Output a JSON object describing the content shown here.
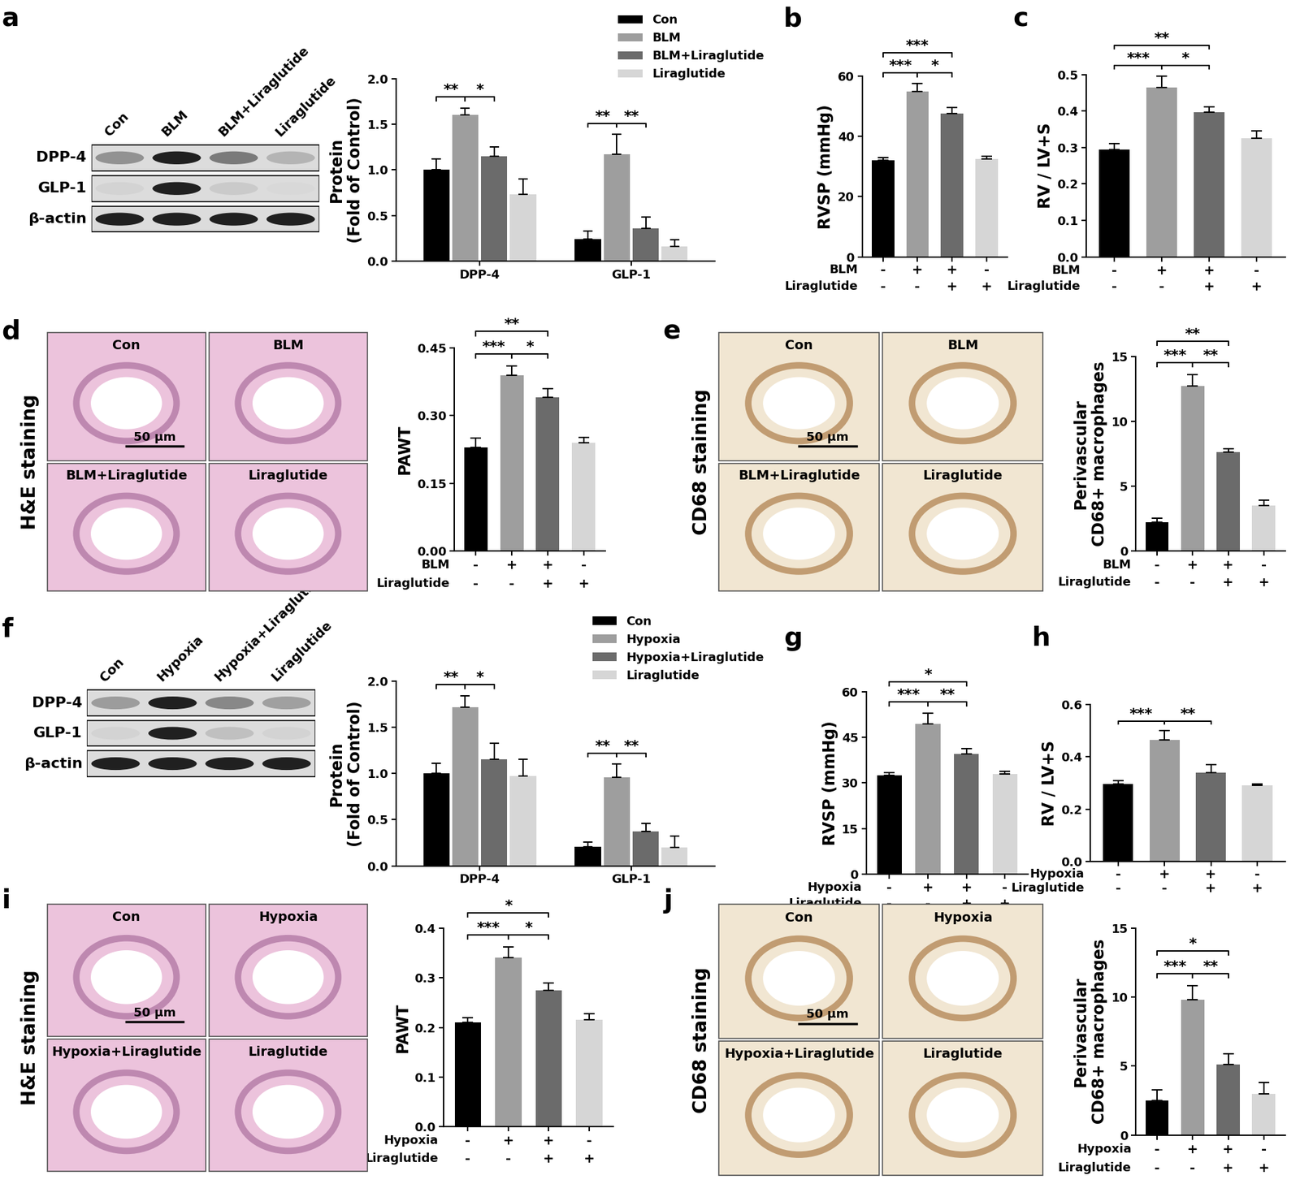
{
  "chart_data": [
    {
      "panel": "a",
      "type": "bar",
      "categories": [
        "DPP-4",
        "GLP-1"
      ],
      "series": [
        {
          "name": "Con",
          "color": "#000000",
          "values": [
            1.0,
            0.24
          ],
          "errors": [
            0.12,
            0.09
          ]
        },
        {
          "name": "BLM",
          "color": "#9e9e9e",
          "values": [
            1.6,
            1.17
          ],
          "errors": [
            0.08,
            0.22
          ]
        },
        {
          "name": "BLM+Liraglutide",
          "color": "#6b6b6b",
          "values": [
            1.15,
            0.36
          ],
          "errors": [
            0.1,
            0.12
          ]
        },
        {
          "name": "Liraglutide",
          "color": "#d6d6d6",
          "values": [
            0.73,
            0.16
          ],
          "errors": [
            0.17,
            0.07
          ]
        }
      ],
      "y_label": "Protein\n(Fold of Control)",
      "ylim": [
        0,
        2.0
      ],
      "yticks": [
        0.0,
        0.5,
        1.0,
        1.5,
        2.0
      ],
      "legend": "upper right",
      "significance": [
        {
          "category": 0,
          "from": 0,
          "to": 1,
          "text": "**"
        },
        {
          "category": 0,
          "from": 1,
          "to": 2,
          "text": "*"
        },
        {
          "category": 1,
          "from": 0,
          "to": 1,
          "text": "**"
        },
        {
          "category": 1,
          "from": 1,
          "to": 2,
          "text": "**"
        }
      ]
    },
    {
      "panel": "b",
      "type": "bar",
      "categories": [
        null,
        null,
        null,
        null
      ],
      "values": [
        32,
        55,
        47.5,
        32.5
      ],
      "errors": [
        1,
        2.5,
        2,
        1
      ],
      "colors": [
        "#000000",
        "#9e9e9e",
        "#6b6b6b",
        "#d6d6d6"
      ],
      "conditions": [
        {
          "name": "BLM",
          "signs": [
            "-",
            "+",
            "+",
            "-"
          ]
        },
        {
          "name": "Liraglutide",
          "signs": [
            "-",
            "-",
            "+",
            "+"
          ]
        }
      ],
      "y_label": "RVSP (mmHg)",
      "ylim": [
        0,
        60
      ],
      "yticks": [
        0,
        20,
        40,
        60
      ],
      "significance": [
        {
          "from": 0,
          "to": 1,
          "text": "***"
        },
        {
          "from": 1,
          "to": 2,
          "text": "*"
        },
        {
          "from": 0,
          "to": 2,
          "text": "***"
        }
      ]
    },
    {
      "panel": "c",
      "type": "bar",
      "categories": [
        null,
        null,
        null,
        null
      ],
      "values": [
        0.295,
        0.465,
        0.397,
        0.325
      ],
      "errors": [
        0.015,
        0.03,
        0.015,
        0.02
      ],
      "colors": [
        "#000000",
        "#9e9e9e",
        "#6b6b6b",
        "#d6d6d6"
      ],
      "conditions": [
        {
          "name": "BLM",
          "signs": [
            "-",
            "+",
            "+",
            "-"
          ]
        },
        {
          "name": "Liraglutide",
          "signs": [
            "-",
            "-",
            "+",
            "+"
          ]
        }
      ],
      "y_label": "RV / LV+S",
      "ylim": [
        0,
        0.5
      ],
      "yticks": [
        0.0,
        0.1,
        0.2,
        0.3,
        0.4,
        0.5
      ],
      "significance": [
        {
          "from": 0,
          "to": 1,
          "text": "***"
        },
        {
          "from": 1,
          "to": 2,
          "text": "*"
        },
        {
          "from": 0,
          "to": 2,
          "text": "**"
        }
      ]
    },
    {
      "panel": "d",
      "type": "bar",
      "categories": [
        null,
        null,
        null,
        null
      ],
      "values": [
        0.23,
        0.39,
        0.34,
        0.24
      ],
      "errors": [
        0.02,
        0.02,
        0.02,
        0.012
      ],
      "colors": [
        "#000000",
        "#9e9e9e",
        "#6b6b6b",
        "#d6d6d6"
      ],
      "conditions": [
        {
          "name": "BLM",
          "signs": [
            "-",
            "+",
            "+",
            "-"
          ]
        },
        {
          "name": "Liraglutide",
          "signs": [
            "-",
            "-",
            "+",
            "+"
          ]
        }
      ],
      "y_label": "PAWT",
      "ylim": [
        0,
        0.45
      ],
      "yticks": [
        {
          "value": 0.0,
          "label": "0.00"
        },
        {
          "value": 0.15,
          "label": "0.15"
        },
        {
          "value": 0.3,
          "label": "0.30"
        },
        {
          "value": 0.45,
          "label": "0.45"
        }
      ],
      "significance": [
        {
          "from": 0,
          "to": 1,
          "text": "***"
        },
        {
          "from": 1,
          "to": 2,
          "text": "*"
        },
        {
          "from": 0,
          "to": 2,
          "text": "**"
        }
      ]
    },
    {
      "panel": "e",
      "type": "bar",
      "categories": [
        null,
        null,
        null,
        null
      ],
      "values": [
        2.2,
        12.7,
        7.6,
        3.5
      ],
      "errors": [
        0.3,
        0.9,
        0.3,
        0.4
      ],
      "colors": [
        "#000000",
        "#9e9e9e",
        "#6b6b6b",
        "#d6d6d6"
      ],
      "conditions": [
        {
          "name": "BLM",
          "signs": [
            "-",
            "+",
            "+",
            "-"
          ]
        },
        {
          "name": "Liraglutide",
          "signs": [
            "-",
            "-",
            "+",
            "+"
          ]
        }
      ],
      "y_label": "Perivascular\nCD68+ macrophages",
      "ylim": [
        0,
        15
      ],
      "yticks": [
        0,
        5,
        10,
        15
      ],
      "significance": [
        {
          "from": 0,
          "to": 1,
          "text": "***"
        },
        {
          "from": 1,
          "to": 2,
          "text": "**"
        },
        {
          "from": 0,
          "to": 2,
          "text": "**"
        }
      ]
    },
    {
      "panel": "f",
      "type": "bar",
      "categories": [
        "DPP-4",
        "GLP-1"
      ],
      "series": [
        {
          "name": "Con",
          "color": "#000000",
          "values": [
            1.0,
            0.21
          ],
          "errors": [
            0.11,
            0.05
          ]
        },
        {
          "name": "Hypoxia",
          "color": "#9e9e9e",
          "values": [
            1.72,
            0.96
          ],
          "errors": [
            0.12,
            0.14
          ]
        },
        {
          "name": "Hypoxia+Liraglutide",
          "color": "#6b6b6b",
          "values": [
            1.15,
            0.37
          ],
          "errors": [
            0.18,
            0.09
          ]
        },
        {
          "name": "Liraglutide",
          "color": "#d6d6d6",
          "values": [
            0.97,
            0.2
          ],
          "errors": [
            0.18,
            0.12
          ]
        }
      ],
      "y_label": "Protein\n(Fold of Control)",
      "ylim": [
        0,
        2.0
      ],
      "yticks": [
        0.0,
        0.5,
        1.0,
        1.5,
        2.0
      ],
      "legend": "upper right",
      "significance": [
        {
          "category": 0,
          "from": 0,
          "to": 1,
          "text": "**"
        },
        {
          "category": 0,
          "from": 1,
          "to": 2,
          "text": "*"
        },
        {
          "category": 1,
          "from": 0,
          "to": 1,
          "text": "**"
        },
        {
          "category": 1,
          "from": 1,
          "to": 2,
          "text": "**"
        }
      ]
    },
    {
      "panel": "g",
      "type": "bar",
      "categories": [
        null,
        null,
        null,
        null
      ],
      "values": [
        32.5,
        49.5,
        39.5,
        33
      ],
      "errors": [
        0.8,
        3.5,
        1.8,
        0.8
      ],
      "colors": [
        "#000000",
        "#9e9e9e",
        "#6b6b6b",
        "#d6d6d6"
      ],
      "conditions": [
        {
          "name": "Hypoxia",
          "signs": [
            "-",
            "+",
            "+",
            "-"
          ]
        },
        {
          "name": "Liraglutide",
          "signs": [
            "-",
            "-",
            "+",
            "+"
          ]
        }
      ],
      "y_label": "RVSP (mmHg)",
      "ylim": [
        0,
        60
      ],
      "yticks": [
        0,
        15,
        30,
        45,
        60
      ],
      "significance": [
        {
          "from": 0,
          "to": 1,
          "text": "***"
        },
        {
          "from": 1,
          "to": 2,
          "text": "**"
        },
        {
          "from": 0,
          "to": 2,
          "text": "*"
        }
      ]
    },
    {
      "panel": "h",
      "type": "bar",
      "categories": [
        null,
        null,
        null,
        null
      ],
      "values": [
        0.295,
        0.465,
        0.34,
        0.29
      ],
      "errors": [
        0.015,
        0.035,
        0.03,
        0.007
      ],
      "colors": [
        "#000000",
        "#9e9e9e",
        "#6b6b6b",
        "#d6d6d6"
      ],
      "conditions": [
        {
          "name": "Hypoxia",
          "signs": [
            "-",
            "+",
            "+",
            "-"
          ]
        },
        {
          "name": "Liraglutide",
          "signs": [
            "-",
            "-",
            "+",
            "+"
          ]
        }
      ],
      "y_label": "RV / LV+S",
      "ylim": [
        0,
        0.6
      ],
      "yticks": [
        0.0,
        0.2,
        0.4,
        0.6
      ],
      "significance": [
        {
          "from": 0,
          "to": 1,
          "text": "***"
        },
        {
          "from": 1,
          "to": 2,
          "text": "**"
        }
      ]
    },
    {
      "panel": "i",
      "type": "bar",
      "categories": [
        null,
        null,
        null,
        null
      ],
      "values": [
        0.21,
        0.34,
        0.275,
        0.215
      ],
      "errors": [
        0.01,
        0.022,
        0.015,
        0.012
      ],
      "colors": [
        "#000000",
        "#9e9e9e",
        "#6b6b6b",
        "#d6d6d6"
      ],
      "conditions": [
        {
          "name": "Hypoxia",
          "signs": [
            "-",
            "+",
            "+",
            "-"
          ]
        },
        {
          "name": "Liraglutide",
          "signs": [
            "-",
            "-",
            "+",
            "+"
          ]
        }
      ],
      "y_label": "PAWT",
      "ylim": [
        0,
        0.4
      ],
      "yticks": [
        0.0,
        0.1,
        0.2,
        0.3,
        0.4
      ],
      "significance": [
        {
          "from": 0,
          "to": 1,
          "text": "***"
        },
        {
          "from": 1,
          "to": 2,
          "text": "*"
        },
        {
          "from": 0,
          "to": 2,
          "text": "*"
        }
      ]
    },
    {
      "panel": "j",
      "type": "bar",
      "categories": [
        null,
        null,
        null,
        null
      ],
      "values": [
        2.5,
        9.8,
        5.1,
        3.0
      ],
      "errors": [
        0.8,
        1.0,
        0.8,
        0.8
      ],
      "colors": [
        "#000000",
        "#9e9e9e",
        "#6b6b6b",
        "#d6d6d6"
      ],
      "conditions": [
        {
          "name": "Hypoxia",
          "signs": [
            "-",
            "+",
            "+",
            "-"
          ]
        },
        {
          "name": "Liraglutide",
          "signs": [
            "-",
            "-",
            "+",
            "+"
          ]
        }
      ],
      "y_label": "Perivascular\nCD68+ macrophages",
      "ylim": [
        0,
        15
      ],
      "yticks": [
        0,
        5,
        10,
        15
      ],
      "significance": [
        {
          "from": 0,
          "to": 1,
          "text": "***"
        },
        {
          "from": 1,
          "to": 2,
          "text": "**"
        },
        {
          "from": 0,
          "to": 2,
          "text": "*"
        }
      ]
    }
  ],
  "blots": [
    {
      "panel": "a",
      "lanes": [
        "Con",
        "BLM",
        "BLM+Liraglutide",
        "Liraglutide"
      ],
      "rows": [
        "DPP-4",
        "GLP-1",
        "β-actin"
      ]
    },
    {
      "panel": "f",
      "lanes": [
        "Con",
        "Hypoxia",
        "Hypoxia+Liraglutide",
        "Liraglutide"
      ],
      "rows": [
        "DPP-4",
        "GLP-1",
        "β-actin"
      ]
    }
  ],
  "micrographs": [
    {
      "panel": "d",
      "stain": "H&E staining",
      "color": "#ecc3dc",
      "labels": [
        "Con",
        "BLM",
        "BLM+Liraglutide",
        "Liraglutide"
      ],
      "scale_bar": "50 μm"
    },
    {
      "panel": "e",
      "stain": "CD68 staining",
      "color": "#f1e6d2",
      "labels": [
        "Con",
        "BLM",
        "BLM+Liraglutide",
        "Liraglutide"
      ],
      "scale_bar": "50 μm"
    },
    {
      "panel": "i",
      "stain": "H&E staining",
      "color": "#ecc3dc",
      "labels": [
        "Con",
        "Hypoxia",
        "Hypoxia+Liraglutide",
        "Liraglutide"
      ],
      "scale_bar": "50 μm"
    },
    {
      "panel": "j",
      "stain": "CD68 staining",
      "color": "#f1e6d2",
      "labels": [
        "Con",
        "Hypoxia",
        "Hypoxia+Liraglutide",
        "Liraglutide"
      ],
      "scale_bar": "50 μm"
    }
  ]
}
